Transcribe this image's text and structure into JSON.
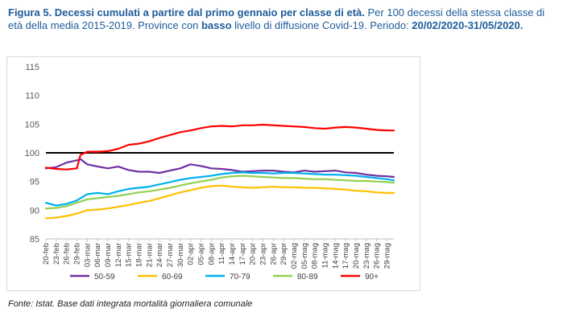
{
  "caption": {
    "fig_label": "Figura 5. Decessi cumulati a partire dal primo gennaio per classe di età.",
    "text_1": " Per 100 decessi della stessa classe di età della media 2015-2019. Province con ",
    "bold_word": "basso",
    "text_2": " livello di diffusione Covid-19. Periodo: ",
    "period": "20/02/2020-31/05/2020."
  },
  "source": "Fonte: Istat. Base dati integrata mortalità giornaliera comunale",
  "colors": {
    "50-59": "#7030a0",
    "60-69": "#ffc000",
    "70-79": "#00b0f0",
    "80-89": "#92d050",
    "90+": "#ff0000",
    "reference": "#000000"
  },
  "chart_data": {
    "type": "line",
    "title": "",
    "xlabel": "",
    "ylabel": "",
    "ylim": [
      85,
      115
    ],
    "yticks": [
      85,
      90,
      95,
      100,
      105,
      110,
      115
    ],
    "grid": false,
    "legend_position": "bottom",
    "x_start": "2020-02-20",
    "x_end": "2020-05-31",
    "xtick_labels": [
      "20-feb",
      "23-feb",
      "26-feb",
      "29-feb",
      "03-mar",
      "06-mar",
      "09-mar",
      "12-mar",
      "15-mar",
      "18-mar",
      "21-mar",
      "24-mar",
      "27-mar",
      "30-mar",
      "02-apr",
      "05-apr",
      "08-apr",
      "11-apr",
      "14-apr",
      "17-apr",
      "20-apr",
      "23-apr",
      "26-apr",
      "29-apr",
      "02-mag",
      "05-mag",
      "08-mag",
      "11-mag",
      "14-mag",
      "17-mag",
      "20-mag",
      "23-mag",
      "26-mag",
      "29-mag"
    ],
    "reference_line": 100,
    "series": [
      {
        "name": "50-59",
        "dates": [
          "2020-02-20",
          "2020-02-23",
          "2020-02-26",
          "2020-02-29",
          "2020-03-01",
          "2020-03-03",
          "2020-03-06",
          "2020-03-09",
          "2020-03-12",
          "2020-03-15",
          "2020-03-18",
          "2020-03-21",
          "2020-03-24",
          "2020-03-27",
          "2020-03-30",
          "2020-04-02",
          "2020-04-05",
          "2020-04-08",
          "2020-04-11",
          "2020-04-14",
          "2020-04-17",
          "2020-04-20",
          "2020-04-23",
          "2020-04-26",
          "2020-04-29",
          "2020-05-02",
          "2020-05-05",
          "2020-05-08",
          "2020-05-11",
          "2020-05-14",
          "2020-05-17",
          "2020-05-20",
          "2020-05-23",
          "2020-05-26",
          "2020-05-29",
          "2020-05-31"
        ],
        "values": [
          97.3,
          97.5,
          98.3,
          98.7,
          98.9,
          98.0,
          97.6,
          97.3,
          97.6,
          97.0,
          96.7,
          96.7,
          96.5,
          96.9,
          97.3,
          98.0,
          97.7,
          97.3,
          97.2,
          97.0,
          96.7,
          96.8,
          96.9,
          96.9,
          96.7,
          96.6,
          96.9,
          96.7,
          96.8,
          96.9,
          96.6,
          96.5,
          96.2,
          96.0,
          95.9,
          95.8
        ]
      },
      {
        "name": "60-69",
        "dates": [
          "2020-02-20",
          "2020-02-23",
          "2020-02-26",
          "2020-02-29",
          "2020-03-03",
          "2020-03-06",
          "2020-03-09",
          "2020-03-12",
          "2020-03-15",
          "2020-03-18",
          "2020-03-21",
          "2020-03-24",
          "2020-03-27",
          "2020-03-30",
          "2020-04-02",
          "2020-04-05",
          "2020-04-08",
          "2020-04-11",
          "2020-04-14",
          "2020-04-17",
          "2020-04-20",
          "2020-04-23",
          "2020-04-26",
          "2020-04-29",
          "2020-05-02",
          "2020-05-05",
          "2020-05-08",
          "2020-05-11",
          "2020-05-14",
          "2020-05-17",
          "2020-05-20",
          "2020-05-23",
          "2020-05-26",
          "2020-05-29",
          "2020-05-31"
        ],
        "values": [
          88.6,
          88.7,
          89.0,
          89.4,
          90.0,
          90.1,
          90.3,
          90.6,
          90.9,
          91.3,
          91.6,
          92.1,
          92.6,
          93.1,
          93.5,
          93.9,
          94.2,
          94.3,
          94.1,
          94.0,
          93.9,
          94.0,
          94.1,
          94.0,
          94.0,
          93.9,
          93.9,
          93.8,
          93.7,
          93.6,
          93.4,
          93.3,
          93.1,
          93.0,
          93.0
        ]
      },
      {
        "name": "70-79",
        "dates": [
          "2020-02-20",
          "2020-02-23",
          "2020-02-26",
          "2020-02-29",
          "2020-03-03",
          "2020-03-06",
          "2020-03-09",
          "2020-03-12",
          "2020-03-15",
          "2020-03-18",
          "2020-03-21",
          "2020-03-24",
          "2020-03-27",
          "2020-03-30",
          "2020-04-02",
          "2020-04-05",
          "2020-04-08",
          "2020-04-11",
          "2020-04-14",
          "2020-04-17",
          "2020-04-20",
          "2020-04-23",
          "2020-04-26",
          "2020-04-29",
          "2020-05-02",
          "2020-05-05",
          "2020-05-08",
          "2020-05-11",
          "2020-05-14",
          "2020-05-17",
          "2020-05-20",
          "2020-05-23",
          "2020-05-26",
          "2020-05-29",
          "2020-05-31"
        ],
        "values": [
          91.3,
          90.8,
          91.1,
          91.7,
          92.8,
          93.0,
          92.8,
          93.3,
          93.7,
          93.9,
          94.1,
          94.5,
          94.9,
          95.3,
          95.6,
          95.8,
          96.0,
          96.3,
          96.5,
          96.6,
          96.5,
          96.5,
          96.4,
          96.5,
          96.5,
          96.4,
          96.3,
          96.2,
          96.2,
          96.1,
          96.0,
          95.8,
          95.6,
          95.4,
          95.2
        ]
      },
      {
        "name": "80-89",
        "dates": [
          "2020-02-20",
          "2020-02-23",
          "2020-02-26",
          "2020-02-29",
          "2020-03-03",
          "2020-03-06",
          "2020-03-09",
          "2020-03-12",
          "2020-03-15",
          "2020-03-18",
          "2020-03-21",
          "2020-03-24",
          "2020-03-27",
          "2020-03-30",
          "2020-04-02",
          "2020-04-05",
          "2020-04-08",
          "2020-04-11",
          "2020-04-14",
          "2020-04-17",
          "2020-04-20",
          "2020-04-23",
          "2020-04-26",
          "2020-04-29",
          "2020-05-02",
          "2020-05-05",
          "2020-05-08",
          "2020-05-11",
          "2020-05-14",
          "2020-05-17",
          "2020-05-20",
          "2020-05-23",
          "2020-05-26",
          "2020-05-29",
          "2020-05-31"
        ],
        "values": [
          90.3,
          90.4,
          90.7,
          91.3,
          91.9,
          92.1,
          92.3,
          92.5,
          92.8,
          93.1,
          93.3,
          93.6,
          93.9,
          94.3,
          94.7,
          95.0,
          95.3,
          95.7,
          95.9,
          96.0,
          95.9,
          95.8,
          95.7,
          95.6,
          95.6,
          95.5,
          95.4,
          95.4,
          95.3,
          95.2,
          95.1,
          95.1,
          95.0,
          94.9,
          94.8
        ]
      },
      {
        "name": "90+",
        "dates": [
          "2020-02-20",
          "2020-02-23",
          "2020-02-26",
          "2020-02-29",
          "2020-03-01",
          "2020-03-03",
          "2020-03-06",
          "2020-03-09",
          "2020-03-12",
          "2020-03-15",
          "2020-03-18",
          "2020-03-21",
          "2020-03-24",
          "2020-03-27",
          "2020-03-30",
          "2020-04-02",
          "2020-04-05",
          "2020-04-08",
          "2020-04-11",
          "2020-04-14",
          "2020-04-17",
          "2020-04-20",
          "2020-04-23",
          "2020-04-26",
          "2020-04-29",
          "2020-05-02",
          "2020-05-05",
          "2020-05-08",
          "2020-05-11",
          "2020-05-14",
          "2020-05-17",
          "2020-05-20",
          "2020-05-23",
          "2020-05-26",
          "2020-05-29",
          "2020-05-31"
        ],
        "values": [
          97.4,
          97.2,
          97.1,
          97.3,
          99.6,
          100.2,
          100.2,
          100.3,
          100.7,
          101.4,
          101.6,
          102.0,
          102.6,
          103.1,
          103.6,
          103.9,
          104.3,
          104.6,
          104.7,
          104.6,
          104.8,
          104.8,
          104.9,
          104.8,
          104.7,
          104.6,
          104.5,
          104.3,
          104.2,
          104.4,
          104.5,
          104.4,
          104.2,
          104.0,
          103.9,
          103.9
        ]
      }
    ]
  }
}
